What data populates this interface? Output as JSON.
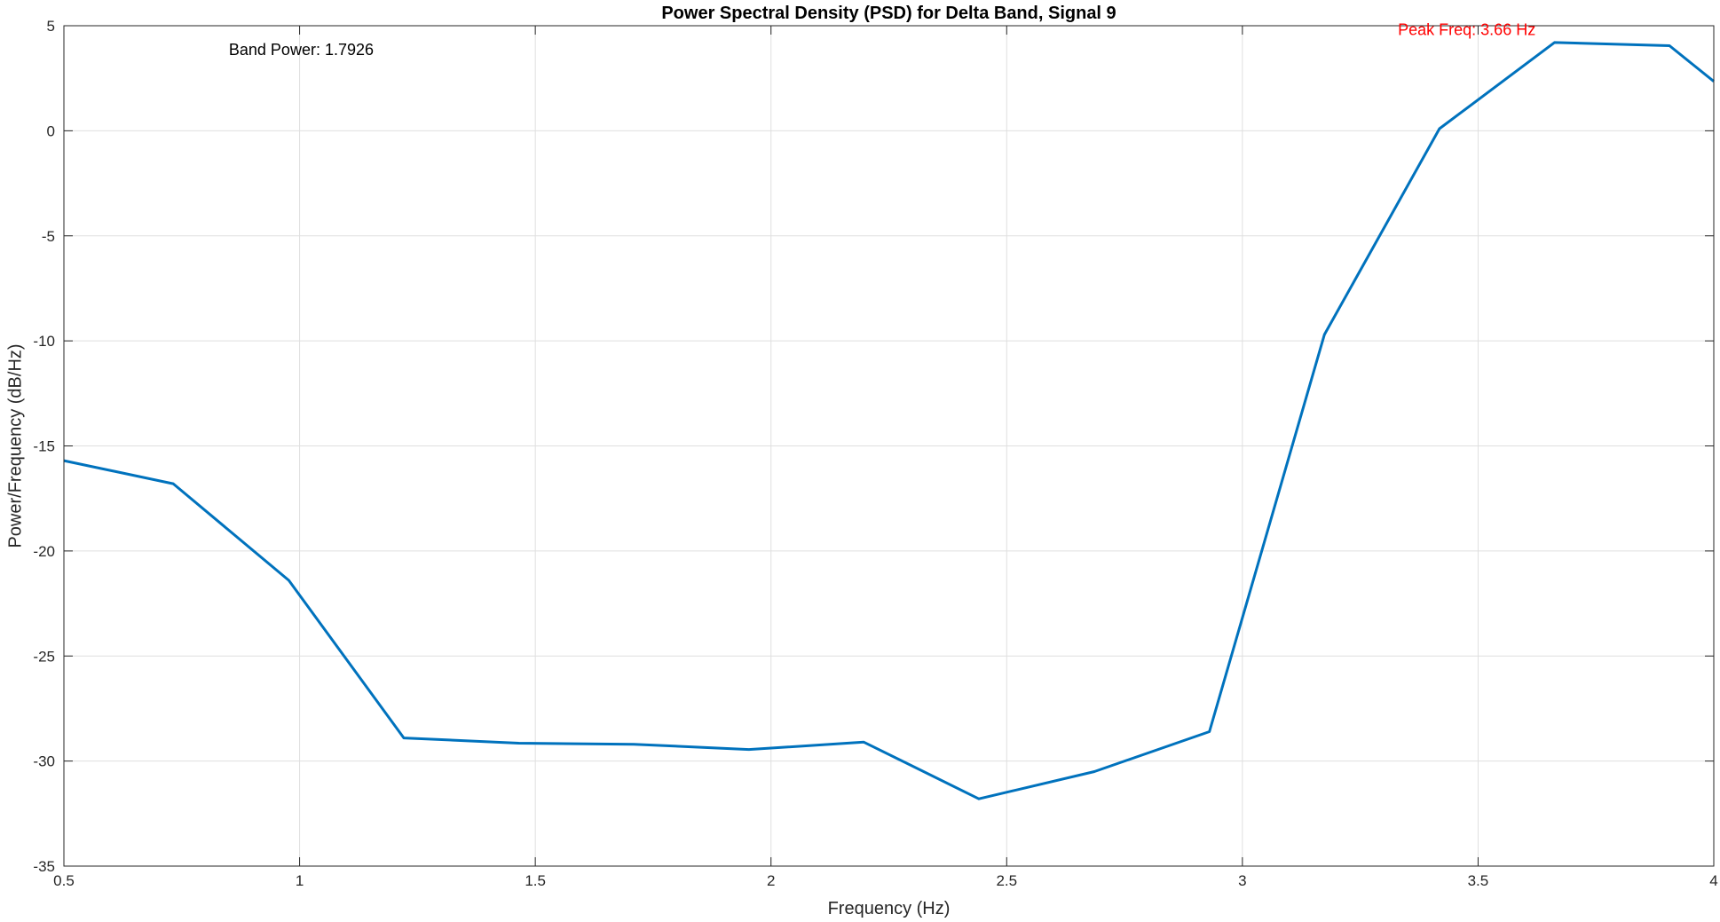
{
  "chart_data": {
    "type": "line",
    "title": "Power Spectral Density (PSD) for Delta Band, Signal 9",
    "xlabel": "Frequency (Hz)",
    "ylabel": "Power/Frequency (dB/Hz)",
    "xlim": [
      0.5,
      4
    ],
    "ylim": [
      -35,
      5
    ],
    "xticks": [
      0.5,
      1,
      1.5,
      2,
      2.5,
      3,
      3.5,
      4
    ],
    "xtick_labels": [
      "0.5",
      "1",
      "1.5",
      "2",
      "2.5",
      "3",
      "3.5",
      "4"
    ],
    "yticks": [
      5,
      0,
      -5,
      -10,
      -15,
      -20,
      -25,
      -30,
      -35
    ],
    "ytick_labels": [
      "5",
      "0",
      "-5",
      "-10",
      "-15",
      "-20",
      "-25",
      "-30",
      "-35"
    ],
    "grid": true,
    "series": [
      {
        "color": "#0072BD",
        "x": [
          0.5,
          0.732,
          0.977,
          1.221,
          1.465,
          1.709,
          1.953,
          2.197,
          2.441,
          2.686,
          2.93,
          3.174,
          3.418,
          3.662,
          3.906,
          4.0
        ],
        "y": [
          -15.7,
          -16.8,
          -21.4,
          -28.9,
          -29.15,
          -29.2,
          -29.45,
          -29.1,
          -31.8,
          -30.5,
          -28.6,
          -9.7,
          0.1,
          4.2,
          4.05,
          2.35
        ]
      }
    ],
    "annotations": [
      {
        "text": "Band Power: 1.7926",
        "x": 0.85,
        "y": 3.6,
        "color": "#000000"
      },
      {
        "text": "Peak Freq: 3.66 Hz",
        "x": 3.33,
        "y": 4.55,
        "color": "#ff0000"
      }
    ]
  }
}
